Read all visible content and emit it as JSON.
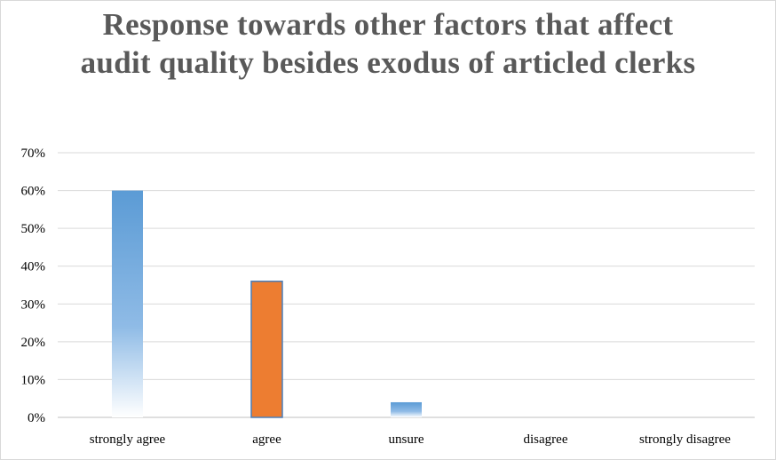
{
  "chart_data": {
    "type": "bar",
    "title": "Response towards other factors that affect audit quality besides exodus of articled clerks",
    "categories": [
      "strongly agree",
      "agree",
      "unsure",
      "disagree",
      "strongly disagree"
    ],
    "values": [
      60,
      36,
      4,
      0,
      0
    ],
    "value_unit": "%",
    "ylim": [
      0,
      70
    ],
    "yticks": [
      "0%",
      "10%",
      "20%",
      "30%",
      "40%",
      "50%",
      "60%",
      "70%"
    ],
    "xlabel": "",
    "ylabel": "",
    "grid": true,
    "legend": "none",
    "bar_colors": [
      "#5b9bd5",
      "#ed7d31",
      "#5b9bd5",
      "#5b9bd5",
      "#5b9bd5"
    ],
    "gradient_bars": [
      true,
      false,
      true,
      true,
      true
    ]
  }
}
